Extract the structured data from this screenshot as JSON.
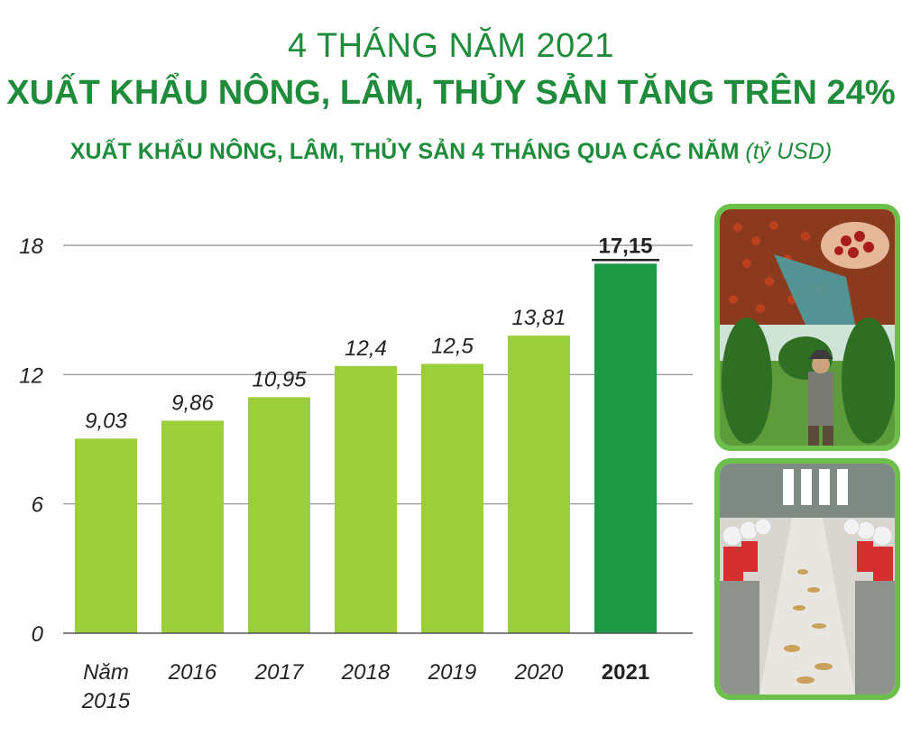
{
  "header": {
    "kicker": "4 THÁNG NĂM 2021",
    "headline": "XUẤT KHẨU NÔNG, LÂM, THỦY SẢN TĂNG TRÊN 24%",
    "subtitle": "XUẤT KHẨU NÔNG, LÂM, THỦY SẢN 4 THÁNG QUA CÁC NĂM",
    "unit": "(tỷ USD)"
  },
  "chart_data": {
    "type": "bar",
    "categories": [
      [
        "Năm",
        "2015"
      ],
      [
        "2016"
      ],
      [
        "2017"
      ],
      [
        "2018"
      ],
      [
        "2019"
      ],
      [
        "2020"
      ],
      [
        "2021"
      ]
    ],
    "values": [
      9.03,
      9.86,
      10.95,
      12.4,
      12.5,
      13.81,
      17.15
    ],
    "value_labels": [
      "9,03",
      "9,86",
      "10,95",
      "12,4",
      "12,5",
      "13,81",
      "17,15"
    ],
    "highlight_index": 6,
    "ylim": [
      0,
      18
    ],
    "yticks": [
      0,
      6,
      12,
      18
    ],
    "grid": true,
    "colors": {
      "bar": "#9ccd3b",
      "highlight": "#1e9a47",
      "grid": "#888888"
    }
  },
  "photos": {
    "top_icon": "coffee-pepper-harvest-photo",
    "bottom_icon": "seafood-processing-photo"
  },
  "colors": {
    "title": "#1e8c3a",
    "frame": "#6cc04a"
  }
}
